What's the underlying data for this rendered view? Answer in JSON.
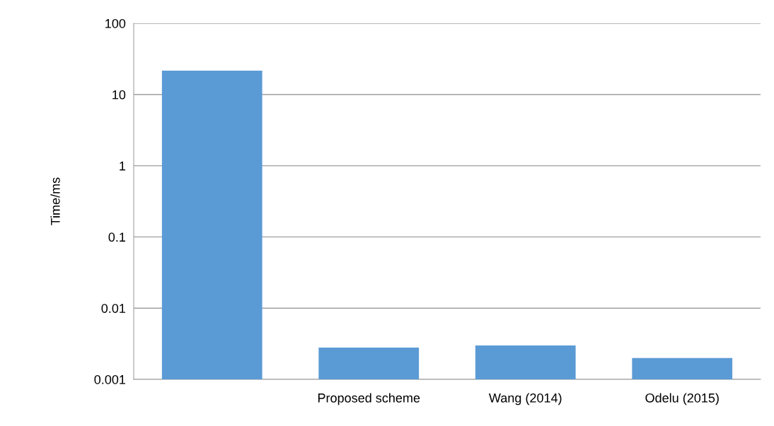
{
  "chart_data": {
    "type": "bar",
    "ylabel": "Time/ms",
    "categories": [
      null,
      "Proposed scheme",
      "Wang (2014)",
      "Odelu (2015)"
    ],
    "values": [
      21.6,
      0.0028,
      0.003,
      0.002
    ],
    "color": "#5b9bd5",
    "log": true,
    "ylim": [
      0.001,
      100
    ],
    "yticks": [
      {
        "value": 0.001,
        "label": "0.001"
      },
      {
        "value": 0.01,
        "label": "0.01"
      },
      {
        "value": 0.1,
        "label": "0.1"
      },
      {
        "value": 1,
        "label": "1"
      },
      {
        "value": 10,
        "label": "10"
      },
      {
        "value": 100,
        "label": "100"
      }
    ],
    "grid": "y"
  }
}
